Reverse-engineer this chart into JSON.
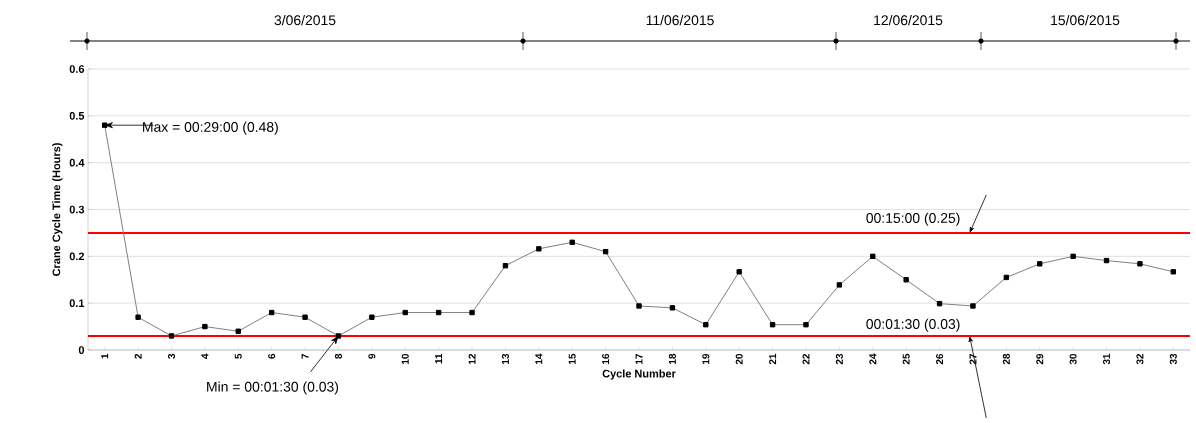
{
  "chart_data": {
    "type": "line",
    "xlabel": "Cycle Number",
    "ylabel": "Crane Cycle Time (Hours)",
    "categories": [
      "1",
      "2",
      "3",
      "4",
      "5",
      "6",
      "7",
      "8",
      "9",
      "10",
      "11",
      "12",
      "13",
      "14",
      "15",
      "16",
      "17",
      "18",
      "19",
      "20",
      "21",
      "22",
      "23",
      "24",
      "25",
      "26",
      "27",
      "28",
      "29",
      "30",
      "31",
      "32",
      "33"
    ],
    "series": [
      {
        "color": "#808080",
        "values": [
          0.48,
          0.07,
          0.03,
          0.05,
          0.04,
          0.08,
          0.07,
          0.03,
          0.07,
          0.08,
          0.08,
          0.08,
          0.18,
          0.216,
          0.23,
          0.21,
          0.094,
          0.09,
          0.054,
          0.167,
          0.054,
          0.054,
          0.139,
          0.2,
          0.15,
          0.099,
          0.094,
          0.155,
          0.184,
          0.2,
          0.191,
          0.184,
          0.167
        ]
      }
    ],
    "ylim": [
      0,
      0.6
    ],
    "yticks": [
      0,
      0.1,
      0.2,
      0.3,
      0.4,
      0.5,
      0.6
    ],
    "grid": "y",
    "marker": "square",
    "line_style": "solid",
    "ref_lines": [
      {
        "axis": "y",
        "value": 0.25,
        "label": "00:15:00 (0.25)",
        "color": "#ff0000"
      },
      {
        "axis": "y",
        "value": 0.03,
        "label": "00:01:30 (0.03)",
        "color": "#ff0000"
      }
    ],
    "annotations": [
      {
        "text": "Max = 00:29:00 (0.48)",
        "x": "1",
        "y": 0.48
      },
      {
        "text": "Min = 00:01:30 (0.03)",
        "x": "8",
        "y": 0.03
      },
      "3/06/2015",
      "11/06/2015",
      "12/06/2015",
      "15/06/2015"
    ]
  }
}
